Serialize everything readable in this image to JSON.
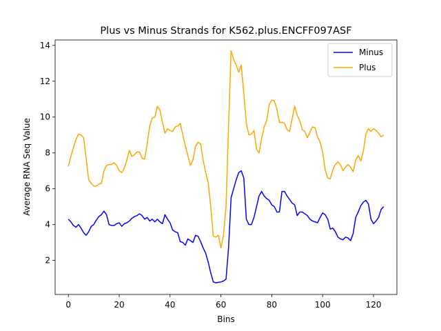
{
  "chart_data": {
    "type": "line",
    "title": "Plus vs Minus Strands for K562.plus.ENCFF097ASF",
    "xlabel": "Bins",
    "ylabel": "Average RNA Seq Value",
    "xlim": [
      -5.2,
      129.2
    ],
    "ylim": [
      0.1,
      14.3
    ],
    "xticks": [
      0,
      20,
      40,
      60,
      80,
      100,
      120
    ],
    "yticks": [
      2,
      4,
      6,
      8,
      10,
      12,
      14
    ],
    "legend_position": "upper-right",
    "series": [
      {
        "name": "Minus",
        "color": "#0000ff",
        "values": [
          4.3,
          4.15,
          3.95,
          3.85,
          4.0,
          3.8,
          3.55,
          3.4,
          3.6,
          3.9,
          4.0,
          4.25,
          4.45,
          4.55,
          4.75,
          4.55,
          4.0,
          3.95,
          3.95,
          4.05,
          4.1,
          3.9,
          4.05,
          4.1,
          4.2,
          4.35,
          4.45,
          4.5,
          4.6,
          4.5,
          4.3,
          4.4,
          4.2,
          4.3,
          4.15,
          4.3,
          4.15,
          4.05,
          4.55,
          4.3,
          4.1,
          3.7,
          3.6,
          3.55,
          3.05,
          3.0,
          2.85,
          3.2,
          3.1,
          3.0,
          3.4,
          3.35,
          3.05,
          2.7,
          2.4,
          1.9,
          1.3,
          0.8,
          0.75,
          0.78,
          0.8,
          0.85,
          0.95,
          2.7,
          5.5,
          6.0,
          6.5,
          6.9,
          7.0,
          6.6,
          4.3,
          4.0,
          4.0,
          4.4,
          5.0,
          5.6,
          5.85,
          5.6,
          5.45,
          5.35,
          5.1,
          5.0,
          4.7,
          4.7,
          5.85,
          5.85,
          5.6,
          5.4,
          5.2,
          5.1,
          4.5,
          4.7,
          4.7,
          4.6,
          4.5,
          4.3,
          4.2,
          4.15,
          4.1,
          4.4,
          4.65,
          4.55,
          4.3,
          3.75,
          3.8,
          3.6,
          3.3,
          3.2,
          3.15,
          3.3,
          3.25,
          3.1,
          3.5,
          4.4,
          4.7,
          5.05,
          5.25,
          5.35,
          5.15,
          4.3,
          4.05,
          4.2,
          4.4,
          4.85,
          5.0
        ]
      },
      {
        "name": "Plus",
        "color": "#ffa500",
        "values": [
          7.25,
          7.8,
          8.3,
          8.75,
          9.05,
          9.0,
          8.85,
          7.7,
          6.5,
          6.3,
          6.15,
          6.15,
          6.25,
          6.3,
          7.0,
          7.3,
          7.35,
          7.35,
          7.45,
          7.3,
          7.0,
          6.9,
          7.15,
          7.6,
          8.15,
          7.8,
          7.9,
          8.05,
          8.05,
          7.7,
          7.65,
          8.5,
          9.5,
          9.95,
          10.0,
          10.6,
          10.4,
          9.7,
          9.1,
          9.35,
          9.25,
          9.2,
          9.45,
          9.5,
          9.65,
          9.0,
          8.4,
          7.85,
          7.3,
          7.6,
          8.35,
          8.6,
          8.5,
          7.6,
          6.9,
          6.35,
          5.0,
          3.35,
          3.3,
          3.4,
          2.7,
          3.4,
          5.0,
          9.5,
          13.7,
          13.2,
          12.9,
          12.5,
          12.9,
          11.3,
          9.65,
          9.0,
          9.05,
          9.25,
          8.2,
          8.0,
          8.8,
          9.45,
          9.8,
          10.7,
          10.95,
          10.9,
          10.45,
          9.7,
          9.7,
          9.65,
          9.3,
          9.2,
          9.9,
          10.6,
          10.1,
          9.8,
          9.3,
          9.2,
          8.85,
          9.15,
          9.45,
          9.4,
          8.9,
          8.6,
          8.05,
          7.05,
          6.6,
          6.55,
          7.05,
          7.35,
          7.5,
          7.35,
          7.0,
          7.2,
          7.35,
          7.2,
          6.95,
          7.6,
          7.85,
          7.55,
          8.1,
          9.05,
          9.35,
          9.2,
          9.35,
          9.25,
          9.1,
          8.9,
          9.0
        ]
      }
    ]
  }
}
